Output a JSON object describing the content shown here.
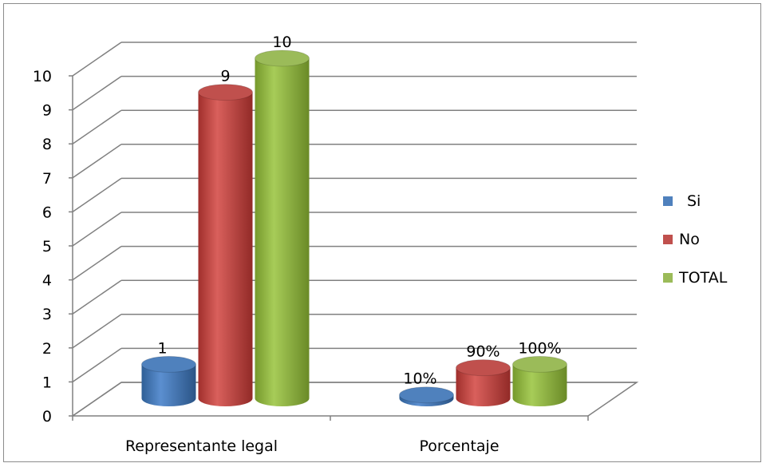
{
  "chart_data": {
    "type": "bar",
    "style": "3d-cylinder",
    "title": "",
    "xlabel": "",
    "ylabel": "",
    "ylim": [
      0,
      10
    ],
    "yticks": [
      0,
      1,
      2,
      3,
      4,
      5,
      6,
      7,
      8,
      9,
      10
    ],
    "grid": true,
    "legend_position": "right",
    "categories": [
      "Representante legal",
      "Porcentaje"
    ],
    "series": [
      {
        "name": "Si",
        "color": "#4f81bd",
        "values": [
          1,
          0.1
        ],
        "labels": [
          "1",
          "10%"
        ]
      },
      {
        "name": "No",
        "color": "#c0504d",
        "values": [
          9,
          0.9
        ],
        "labels": [
          "9",
          "90%"
        ]
      },
      {
        "name": "TOTAL",
        "color": "#9bbb59",
        "values": [
          10,
          1.0
        ],
        "labels": [
          "10",
          "100%"
        ]
      }
    ]
  }
}
